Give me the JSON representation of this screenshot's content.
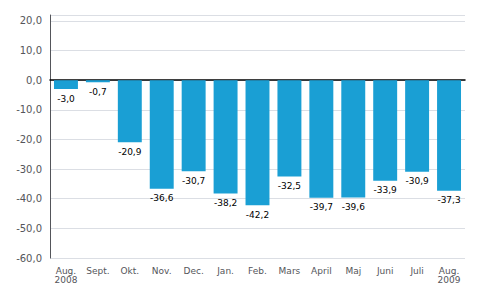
{
  "chart_data": {
    "type": "bar",
    "categories": [
      "Aug.\n2008",
      "Sept.",
      "Okt.",
      "Nov.",
      "Dec.",
      "Jan.",
      "Feb.",
      "Mars",
      "April",
      "Maj",
      "Juni",
      "Juli",
      "Aug.\n2009"
    ],
    "values": [
      -3.0,
      -0.7,
      -20.9,
      -36.6,
      -30.7,
      -38.2,
      -42.2,
      -32.5,
      -39.7,
      -39.6,
      -33.9,
      -30.9,
      -37.3
    ],
    "value_labels": [
      "-3,0",
      "-0,7",
      "-20,9",
      "-36,6",
      "-30,7",
      "-38,2",
      "-42,2",
      "-32,5",
      "-39,7",
      "-39,6",
      "-33,9",
      "-30,9",
      "-37,3"
    ],
    "data_labels": true,
    "color": "#1a9fd4",
    "ylim": [
      -60,
      22
    ],
    "yticks": [
      {
        "value": -60,
        "label": "-60,0"
      },
      {
        "value": -50,
        "label": "-50,0"
      },
      {
        "value": -40,
        "label": "-40,0"
      },
      {
        "value": -30,
        "label": "-30,0"
      },
      {
        "value": -20,
        "label": "-20,0"
      },
      {
        "value": -10,
        "label": "-10,0"
      },
      {
        "value": 0,
        "label": "0,0"
      },
      {
        "value": 10,
        "label": "10,0"
      },
      {
        "value": 20,
        "label": "20,0"
      }
    ],
    "grid": true
  }
}
